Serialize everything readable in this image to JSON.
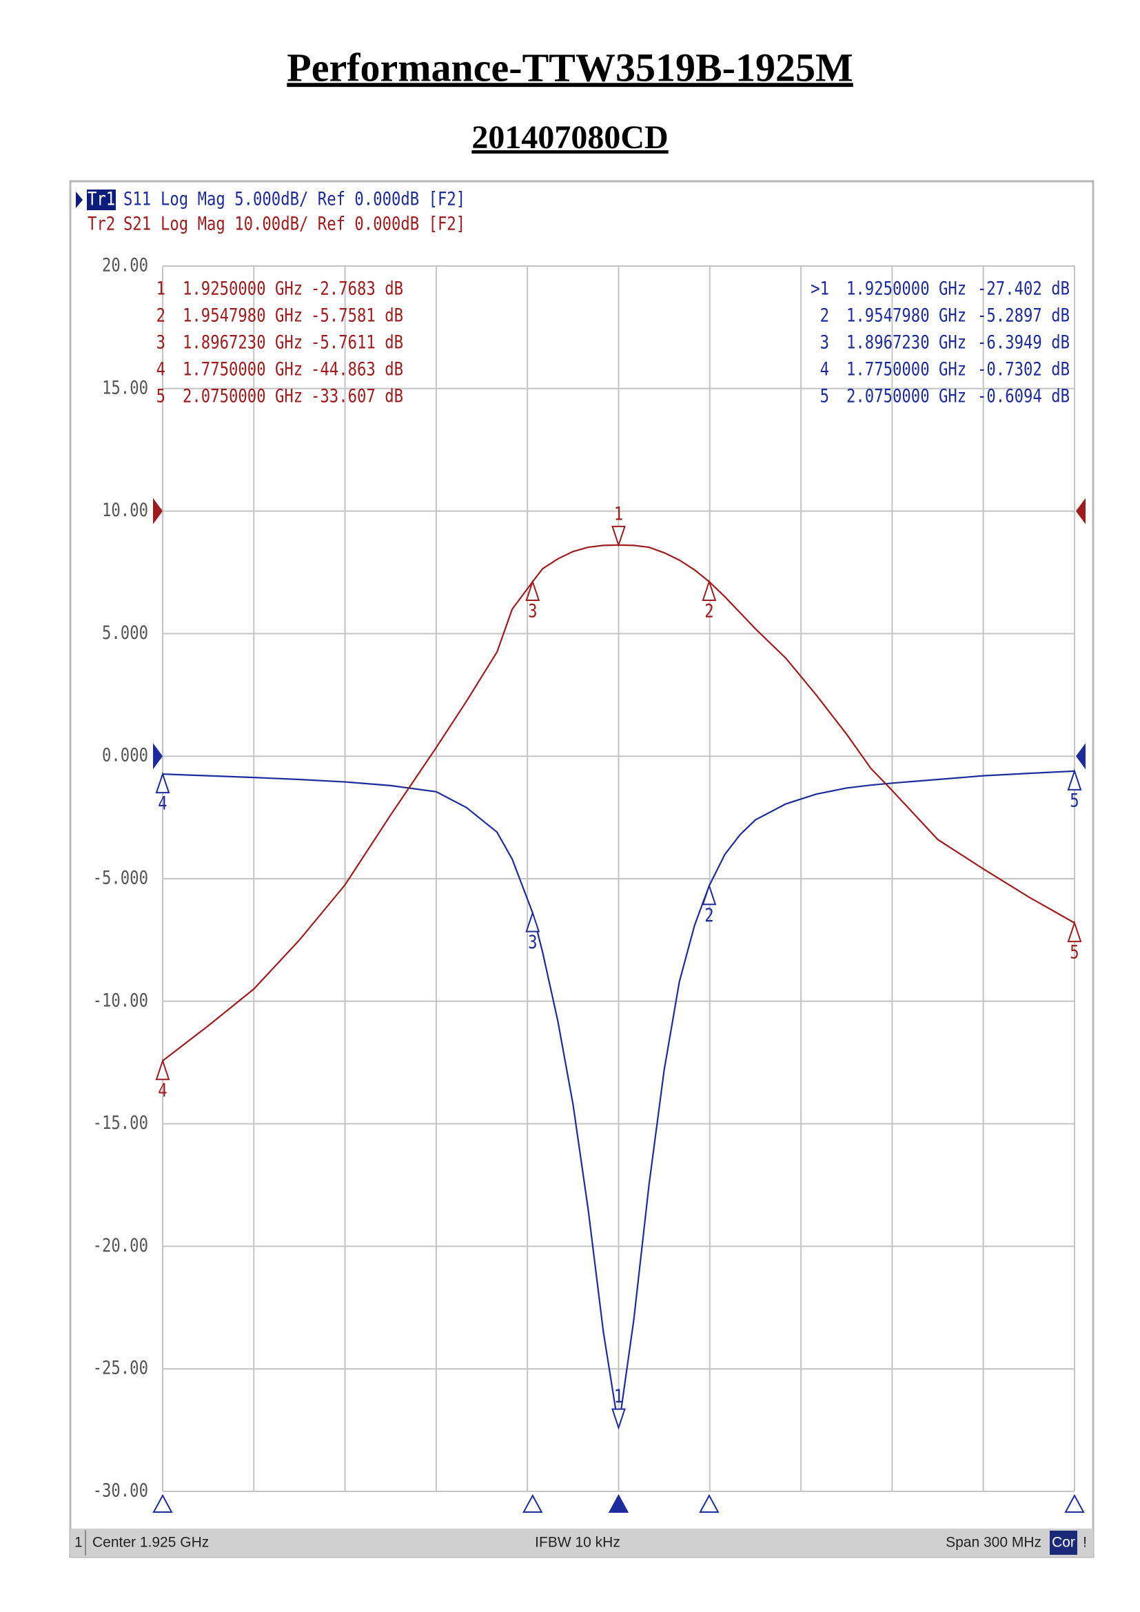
{
  "title": "Performance-TTW3519B-1925M",
  "subtitle": "201407080CD",
  "chart_data": {
    "type": "line",
    "x": [
      1.775,
      1.79,
      1.805,
      1.82,
      1.835,
      1.85,
      1.865,
      1.875,
      1.885,
      1.89,
      1.896723,
      1.9,
      1.905,
      1.91,
      1.915,
      1.92,
      1.925,
      1.93,
      1.935,
      1.94,
      1.945,
      1.95,
      1.954798,
      1.96,
      1.965,
      1.97,
      1.98,
      1.99,
      2.0,
      2.008,
      2.015,
      2.03,
      2.045,
      2.06,
      2.075
    ],
    "xlim": [
      1.775,
      2.075
    ],
    "ylim": [
      -30,
      20
    ],
    "y2lim": [
      -80,
      20
    ],
    "yticks": [
      {
        "value": 20,
        "label": "20.00"
      },
      {
        "value": 15,
        "label": "15.00"
      },
      {
        "value": 10,
        "label": "10.00"
      },
      {
        "value": 5,
        "label": "5.000"
      },
      {
        "value": 0,
        "label": "0.000"
      },
      {
        "value": -5,
        "label": "-5.000"
      },
      {
        "value": -10,
        "label": "-10.00"
      },
      {
        "value": -15,
        "label": "-15.00"
      },
      {
        "value": -20,
        "label": "-20.00"
      },
      {
        "value": -25,
        "label": "-25.00"
      },
      {
        "value": -30,
        "label": "-30.00"
      }
    ],
    "grid": true,
    "series": [
      {
        "trace": "Tr1",
        "name": "S11",
        "format": "Log Mag 5.000dB/ Ref 0.000dB [F2]",
        "color": "#1c2c9c",
        "ref": 0,
        "values": [
          -0.7302,
          -0.8,
          -0.87,
          -0.95,
          -1.05,
          -1.2,
          -1.45,
          -2.1,
          -3.1,
          -4.2,
          -6.3949,
          -8.0,
          -10.8,
          -14.2,
          -18.5,
          -23.5,
          -27.402,
          -23.0,
          -17.5,
          -12.8,
          -9.2,
          -6.9,
          -5.2897,
          -4.0,
          -3.2,
          -2.6,
          -1.95,
          -1.55,
          -1.3,
          -1.18,
          -1.1,
          -0.95,
          -0.8,
          -0.7,
          -0.6094
        ],
        "markers": {
          "names": [
            "1",
            "2",
            "3",
            "4",
            "5"
          ],
          "table_labels": [
            ">1",
            "2",
            "3",
            "4",
            "5"
          ],
          "x": [
            1.925,
            1.954798,
            1.896723,
            1.775,
            2.075
          ],
          "x_labels": [
            "1.9250000 GHz",
            "1.9547980 GHz",
            "1.8967230 GHz",
            "1.7750000 GHz",
            "2.0750000 GHz"
          ],
          "values": [
            -27.402,
            -5.2897,
            -6.3949,
            -0.7302,
            -0.6094
          ],
          "value_labels": [
            "-27.402 dB",
            "-5.2897 dB",
            "-6.3949 dB",
            "-0.7302 dB",
            "-0.6094 dB"
          ]
        }
      },
      {
        "trace": "Tr2",
        "name": "S21",
        "format": "Log Mag 10.00dB/ Ref 0.000dB [F2]",
        "color": "#a01c1c",
        "ref": 0,
        "axis": "y2",
        "values": [
          -44.863,
          -42.0,
          -39.0,
          -35.0,
          -30.5,
          -24.8,
          -19.3,
          -15.5,
          -11.5,
          -8.0,
          -5.7611,
          -4.7,
          -3.9,
          -3.3,
          -2.95,
          -2.8,
          -2.7683,
          -2.8,
          -2.95,
          -3.4,
          -4.0,
          -4.8,
          -5.7581,
          -7.0,
          -8.3,
          -9.6,
          -12.0,
          -15.0,
          -18.2,
          -21.0,
          -22.8,
          -26.8,
          -29.2,
          -31.5,
          -33.607
        ],
        "markers": {
          "names": [
            "1",
            "2",
            "3",
            "4",
            "5"
          ],
          "table_labels": [
            "1",
            "2",
            "3",
            "4",
            "5"
          ],
          "x": [
            1.925,
            1.954798,
            1.896723,
            1.775,
            2.075
          ],
          "x_labels": [
            "1.9250000 GHz",
            "1.9547980 GHz",
            "1.8967230 GHz",
            "1.7750000 GHz",
            "2.0750000 GHz"
          ],
          "values": [
            -2.7683,
            -5.7581,
            -5.7611,
            -44.863,
            -33.607
          ],
          "value_labels": [
            "-2.7683 dB",
            "-5.7581 dB",
            "-5.7611 dB",
            "-44.863 dB",
            "-33.607 dB"
          ]
        }
      }
    ],
    "status": {
      "channel": "1",
      "center": "Center 1.925 GHz",
      "ifbw": "IFBW 10 kHz",
      "span": "Span 300 MHz",
      "correction": "Cor",
      "flag": "!"
    }
  }
}
